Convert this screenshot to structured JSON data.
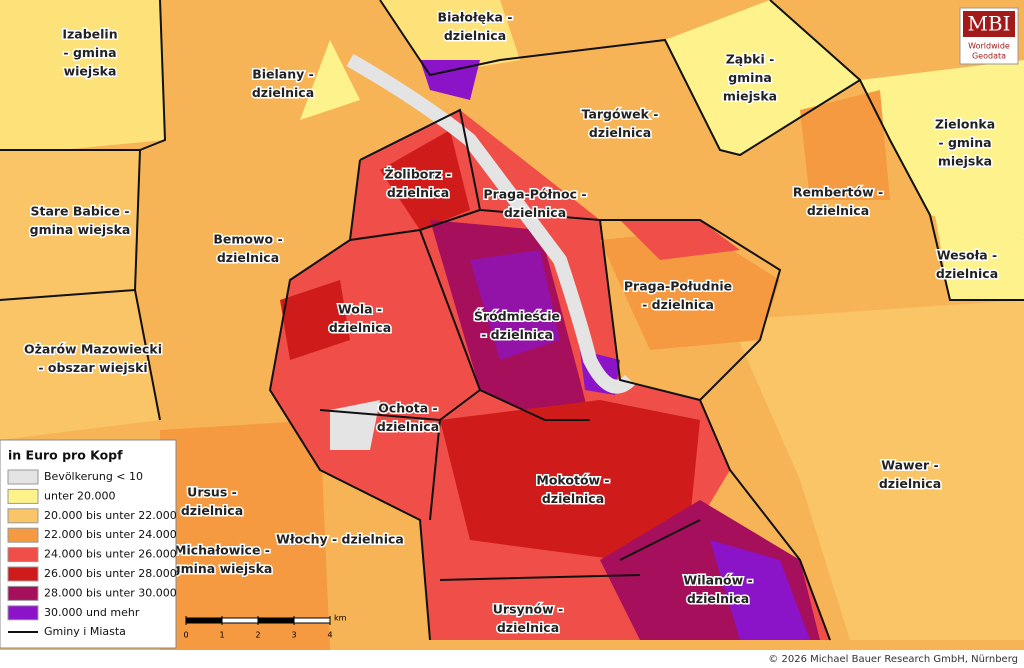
{
  "legend": {
    "title": "in Euro pro Kopf",
    "items": [
      {
        "label": "Bevölkerung < 10",
        "color": "#e4e4e4"
      },
      {
        "label": "unter 20.000",
        "color": "#fdf28c"
      },
      {
        "label": "20.000 bis unter 22.000",
        "color": "#f9c566"
      },
      {
        "label": "22.000 bis unter 24.000",
        "color": "#f59a40"
      },
      {
        "label": "24.000 bis unter 26.000",
        "color": "#f04e48"
      },
      {
        "label": "26.000 bis unter 28.000",
        "color": "#d01b1b"
      },
      {
        "label": "28.000 bis unter 30.000",
        "color": "#a60f5c"
      },
      {
        "label": "30.000 und mehr",
        "color": "#8b14c9"
      }
    ],
    "boundary": "Gminy i Miasta"
  },
  "scale": {
    "ticks": [
      0,
      1,
      2,
      3,
      4
    ],
    "unit": "km"
  },
  "districts": [
    {
      "lines": [
        "Izabelin",
        "- gmina",
        "wiejska"
      ]
    },
    {
      "lines": [
        "Białołęka -",
        "dzielnica"
      ]
    },
    {
      "lines": [
        "Bielany -",
        "dzielnica"
      ]
    },
    {
      "lines": [
        "Ząbki -",
        "gmina",
        "miejska"
      ]
    },
    {
      "lines": [
        "Targówek -",
        "dzielnica"
      ]
    },
    {
      "lines": [
        "Zielonka",
        "- gmina",
        "miejska"
      ]
    },
    {
      "lines": [
        "Żoliborz -",
        "dzielnica"
      ]
    },
    {
      "lines": [
        "Praga-Północ -",
        "dzielnica"
      ]
    },
    {
      "lines": [
        "Rembertów -",
        "dzielnica"
      ]
    },
    {
      "lines": [
        "Stare Babice -",
        "gmina wiejska"
      ]
    },
    {
      "lines": [
        "Bemowo -",
        "dzielnica"
      ]
    },
    {
      "lines": [
        "Wesoła -",
        "dzielnica"
      ]
    },
    {
      "lines": [
        "Praga-Południe",
        "- dzielnica"
      ]
    },
    {
      "lines": [
        "Wola -",
        "dzielnica"
      ]
    },
    {
      "lines": [
        "Śródmieście",
        "- dzielnica"
      ]
    },
    {
      "lines": [
        "Ożarów Mazowiecki",
        "- obszar wiejski"
      ]
    },
    {
      "lines": [
        "Ochota -",
        "dzielnica"
      ]
    },
    {
      "lines": [
        "Mokotów -",
        "dzielnica"
      ]
    },
    {
      "lines": [
        "Wawer -",
        "dzielnica"
      ]
    },
    {
      "lines": [
        "Ursus -",
        "dzielnica"
      ]
    },
    {
      "lines": [
        "Włochy - dzielnica"
      ]
    },
    {
      "lines": [
        "Michałowice -",
        "gmina wiejska"
      ]
    },
    {
      "lines": [
        "Wilanów -",
        "dzielnica"
      ]
    },
    {
      "lines": [
        "Ursynów -",
        "dzielnica"
      ]
    }
  ],
  "logo": {
    "title": "MBI",
    "line1": "Worldwide",
    "line2": "Geodata"
  },
  "copyright": "© 2026 Michael Bauer Research GmbH, Nürnberg"
}
